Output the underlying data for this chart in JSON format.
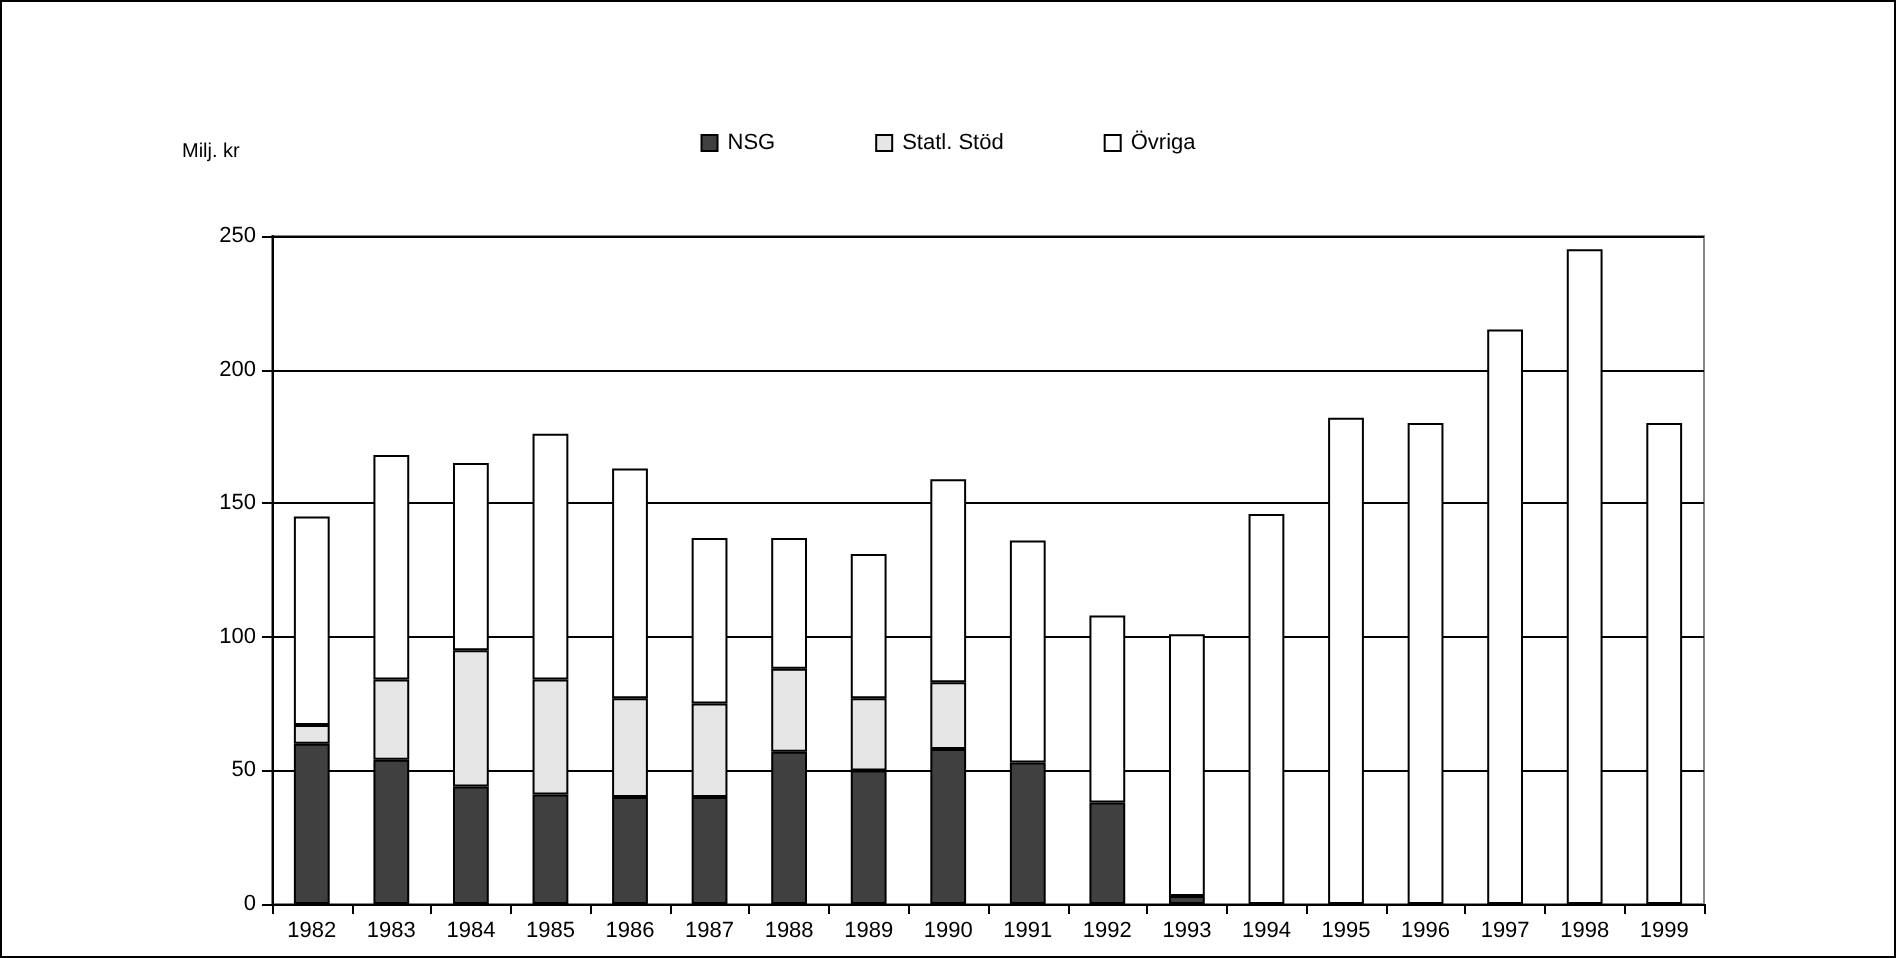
{
  "chart_data": {
    "type": "bar",
    "stacked": true,
    "ylabel": "Milj. kr",
    "categories": [
      "1982",
      "1983",
      "1984",
      "1985",
      "1986",
      "1987",
      "1988",
      "1989",
      "1990",
      "1991",
      "1992",
      "1993",
      "1994",
      "1995",
      "1996",
      "1997",
      "1998",
      "1999"
    ],
    "series": [
      {
        "name": "NSG",
        "color": "#404040",
        "values": [
          60,
          54,
          44,
          41,
          40,
          40,
          57,
          50,
          58,
          53,
          38,
          3,
          null,
          null,
          null,
          null,
          null,
          null
        ]
      },
      {
        "name": "Statl. Stöd",
        "color": "#e6e6e6",
        "values": [
          7,
          30,
          51,
          43,
          37,
          35,
          31,
          27,
          25,
          null,
          null,
          null,
          null,
          null,
          null,
          null,
          null,
          null
        ]
      },
      {
        "name": "Övriga",
        "color": "#ffffff",
        "values": [
          78,
          84,
          70,
          92,
          86,
          62,
          49,
          54,
          76,
          83,
          70,
          98,
          146,
          182,
          180,
          215,
          245,
          180
        ]
      }
    ],
    "ylim": [
      0,
      250
    ],
    "yticks": [
      0,
      50,
      100,
      150,
      200,
      250
    ],
    "grid": "y",
    "legend": "top"
  }
}
